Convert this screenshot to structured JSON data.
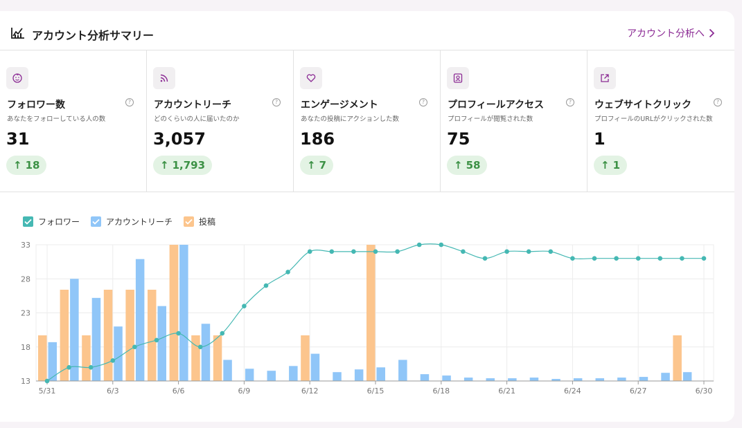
{
  "header": {
    "title": "アカウント分析サマリー",
    "link_label": "アカウント分析へ"
  },
  "metrics": [
    {
      "icon": "smile-face-icon",
      "label": "フォロワー数",
      "desc": "あなたをフォローしている人の数",
      "value": "31",
      "delta": "18"
    },
    {
      "icon": "rss-icon",
      "label": "アカウントリーチ",
      "desc": "どのくらいの人に届いたのか",
      "value": "3,057",
      "delta": "1,793"
    },
    {
      "icon": "heart-icon",
      "label": "エンゲージメント",
      "desc": "あなたの投稿にアクションした数",
      "value": "186",
      "delta": "7"
    },
    {
      "icon": "profile-card-icon",
      "label": "プロフィールアクセス",
      "desc": "プロフィールが閲覧された数",
      "value": "75",
      "delta": "58"
    },
    {
      "icon": "external-link-icon",
      "label": "ウェブサイトクリック",
      "desc": "プロフィールのURLがクリックされた数",
      "value": "1",
      "delta": "1"
    }
  ],
  "colors": {
    "accent": "#8b2a94",
    "followers": "#45b8b3",
    "reach": "#90c6f8",
    "posts": "#fcc58d",
    "delta_bg": "#e3f3e4",
    "delta_fg": "#3c9145"
  },
  "chart_data": {
    "type": "bar",
    "categories": [
      "5/31",
      "6/1",
      "6/2",
      "6/3",
      "6/4",
      "6/5",
      "6/6",
      "6/7",
      "6/8",
      "6/9",
      "6/10",
      "6/11",
      "6/12",
      "6/13",
      "6/14",
      "6/15",
      "6/16",
      "6/17",
      "6/18",
      "6/19",
      "6/20",
      "6/21",
      "6/22",
      "6/23",
      "6/24",
      "6/25",
      "6/26",
      "6/27",
      "6/28",
      "6/29",
      "6/30"
    ],
    "tick_labels": [
      "5/31",
      "6/3",
      "6/6",
      "6/9",
      "6/12",
      "6/15",
      "6/18",
      "6/21",
      "6/24",
      "6/27",
      "6/30"
    ],
    "ylim": [
      13,
      33
    ],
    "yticks": [
      13,
      18,
      23,
      28,
      33
    ],
    "grid": true,
    "legend_position": "top-left",
    "series": [
      {
        "name": "フォロワー",
        "type": "line",
        "color": "#45b8b3",
        "values": [
          13,
          15,
          15,
          16,
          18,
          19,
          20,
          18,
          20,
          24,
          27,
          29,
          32,
          32,
          32,
          32,
          32,
          33,
          33,
          32,
          31,
          32,
          32,
          32,
          31,
          31,
          31,
          31,
          31,
          31,
          31
        ]
      },
      {
        "name": "アカウントリーチ",
        "type": "bar",
        "color": "#90c6f8",
        "values": [
          18.7,
          28,
          25.2,
          21,
          30.9,
          24,
          33,
          21.4,
          16.1,
          14.8,
          14.5,
          15.2,
          17,
          14.3,
          14.7,
          15,
          16.1,
          14,
          13.8,
          13.5,
          13.4,
          13.4,
          13.5,
          13.3,
          13.4,
          13.4,
          13.5,
          13.6,
          14.2,
          14.3,
          null
        ]
      },
      {
        "name": "投稿",
        "type": "bar",
        "color": "#fcc58d",
        "values": [
          19.7,
          26.4,
          19.7,
          26.4,
          26.4,
          26.4,
          33,
          19.7,
          19.7,
          null,
          null,
          null,
          19.7,
          null,
          null,
          33,
          null,
          null,
          null,
          null,
          null,
          null,
          null,
          null,
          null,
          null,
          null,
          null,
          null,
          19.7,
          null
        ]
      }
    ]
  }
}
